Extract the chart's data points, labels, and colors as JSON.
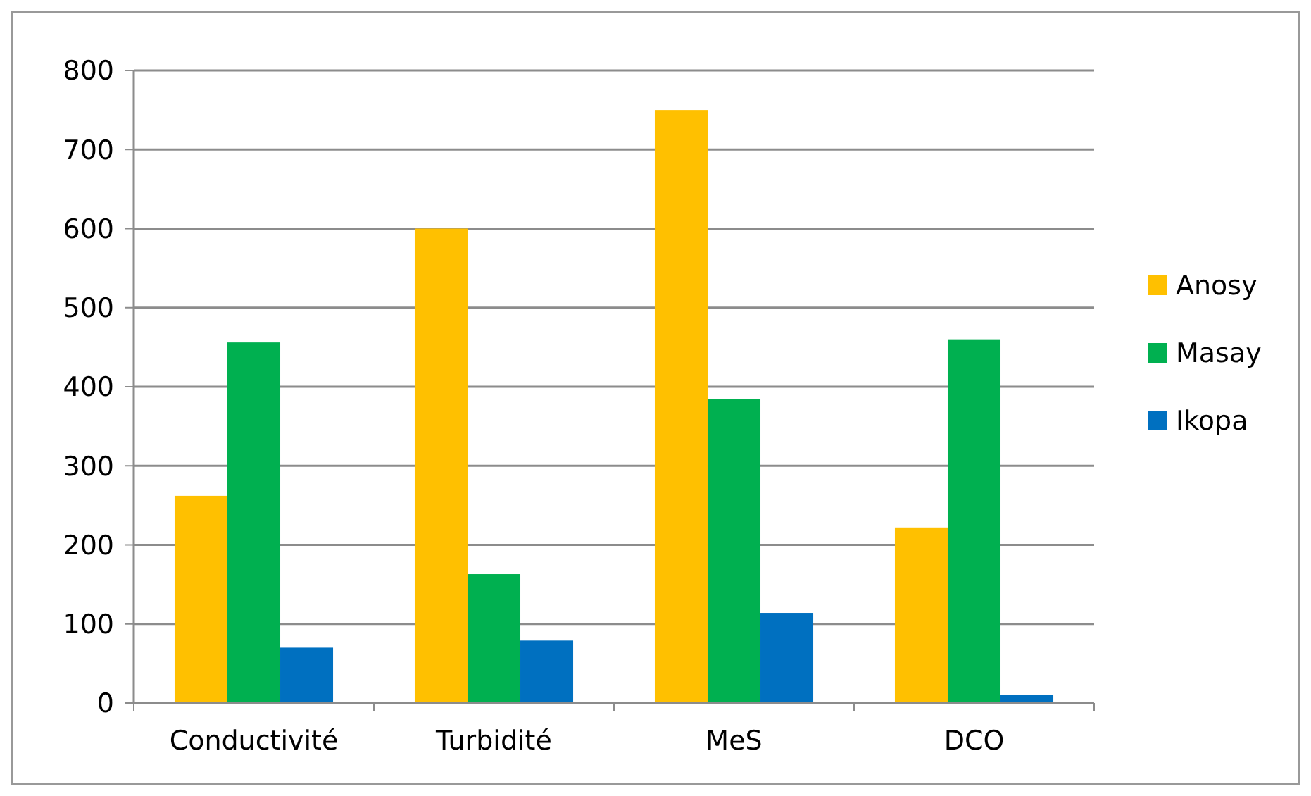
{
  "chart_data": {
    "type": "bar",
    "categories": [
      "Conductivité",
      "Turbidité",
      "MeS",
      "DCO"
    ],
    "series": [
      {
        "name": "Anosy",
        "color": "#ffc000",
        "values": [
          262,
          600,
          750,
          222
        ]
      },
      {
        "name": "Masay",
        "color": "#00b050",
        "values": [
          456,
          163,
          384,
          460
        ]
      },
      {
        "name": "Ikopa",
        "color": "#0070c0",
        "values": [
          70,
          79,
          114,
          10
        ]
      }
    ],
    "ylim": [
      0,
      800
    ],
    "yticks": [
      0,
      100,
      200,
      300,
      400,
      500,
      600,
      700,
      800
    ],
    "grid": "y",
    "legend": "right"
  }
}
